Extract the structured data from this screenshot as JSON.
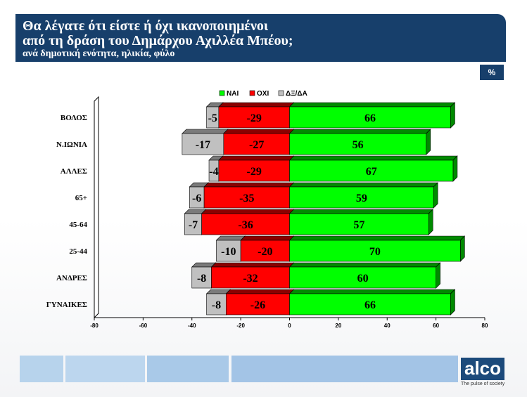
{
  "header": {
    "title_line1": "Θα λέγατε ότι είστε ή όχι ικανοποιημένοι",
    "title_line2": "από τη δράση του Δημάρχου Αχιλλέα Μπέου;",
    "subtitle": "ανά δημοτική ενότητα, ηλικία, φύλο"
  },
  "unit_badge": "%",
  "logo": {
    "text": "alco",
    "tagline": "The pulse of society"
  },
  "colors": {
    "header_bg": "#173f6b",
    "yes": "#00ff00",
    "yes_dark": "#008a00",
    "no": "#ff0000",
    "no_dark": "#8a0000",
    "dk": "#c0c0c0",
    "dk_dark": "#7a7a7a"
  },
  "chart_data": {
    "type": "bar",
    "orientation": "horizontal",
    "stacked": true,
    "categories": [
      "ΒΟΛΟΣ",
      "Ν.ΙΩΝΙΑ",
      "ΑΛΛΕΣ",
      "65+",
      "45-64",
      "25-44",
      "ΑΝΔΡΕΣ",
      "ΓΥΝΑΙΚΕΣ"
    ],
    "series": [
      {
        "name": "ΝΑΙ",
        "values": [
          66,
          56,
          67,
          59,
          57,
          70,
          60,
          66
        ]
      },
      {
        "name": "ΟΧΙ",
        "values": [
          -29,
          -27,
          -29,
          -35,
          -36,
          -20,
          -32,
          -26
        ]
      },
      {
        "name": "ΔΞ/ΔΑ",
        "values": [
          -5,
          -17,
          -4,
          -6,
          -7,
          -10,
          -8,
          -8
        ]
      }
    ],
    "xlim": [
      -80,
      80
    ],
    "xticks": [
      -80,
      -60,
      -40,
      -20,
      0,
      20,
      40,
      60,
      80
    ],
    "legend": "top",
    "grid": false
  }
}
